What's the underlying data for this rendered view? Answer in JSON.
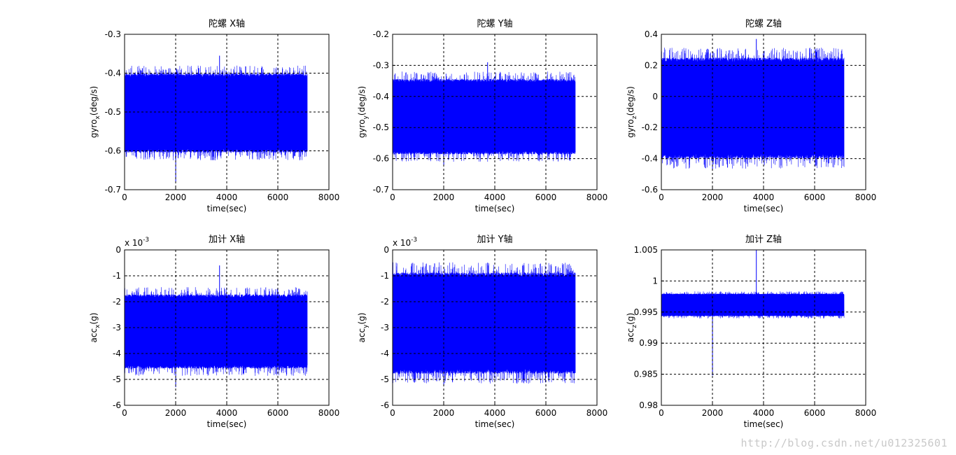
{
  "colors": {
    "series": "#0000ff",
    "axes": "#000000",
    "grid": "#000000",
    "background": "#ffffff"
  },
  "watermark": "http://blog.csdn.net/u012325601",
  "chart_data": [
    {
      "type": "line",
      "title": "陀螺 X轴",
      "xlabel": "time(sec)",
      "ylabel_main": "gyro",
      "ylabel_sub": "x",
      "ylabel_tail": "(deg/s)",
      "exponent": "",
      "xlim": [
        0,
        8000
      ],
      "ylim": [
        -0.7,
        -0.3
      ],
      "xticks": [
        "0",
        "2000",
        "4000",
        "6000",
        "8000"
      ],
      "yticks": [
        "-0.3",
        "-0.4",
        "-0.5",
        "-0.6",
        "-0.7"
      ],
      "grid": true,
      "series": [
        {
          "x_range": [
            0,
            7150
          ],
          "center": -0.505,
          "band_low": -0.595,
          "band_high": -0.41,
          "min": -0.68,
          "max": -0.355
        }
      ]
    },
    {
      "type": "line",
      "title": "陀螺 Y轴",
      "xlabel": "time(sec)",
      "ylabel_main": "gyro",
      "ylabel_sub": "y",
      "ylabel_tail": "(deg/s)",
      "exponent": "",
      "xlim": [
        0,
        8000
      ],
      "ylim": [
        -0.7,
        -0.2
      ],
      "xticks": [
        "0",
        "2000",
        "4000",
        "6000",
        "8000"
      ],
      "yticks": [
        "-0.2",
        "-0.3",
        "-0.4",
        "-0.5",
        "-0.6",
        "-0.7"
      ],
      "grid": true,
      "series": [
        {
          "x_range": [
            0,
            7150
          ],
          "center": -0.465,
          "band_low": -0.575,
          "band_high": -0.355,
          "min": -0.62,
          "max": -0.29
        }
      ]
    },
    {
      "type": "line",
      "title": "陀螺 Z轴",
      "xlabel": "time(sec)",
      "ylabel_main": "gyro",
      "ylabel_sub": "z",
      "ylabel_tail": "(deg/s)",
      "exponent": "",
      "xlim": [
        0,
        8000
      ],
      "ylim": [
        -0.6,
        0.4
      ],
      "xticks": [
        "0",
        "2000",
        "4000",
        "6000",
        "8000"
      ],
      "yticks": [
        "0.4",
        "0.2",
        "0",
        "-0.2",
        "-0.4",
        "-0.6"
      ],
      "grid": true,
      "series": [
        {
          "x_range": [
            0,
            7150
          ],
          "center": -0.08,
          "band_low": -0.37,
          "band_high": 0.22,
          "min": -0.47,
          "max": 0.37
        }
      ]
    },
    {
      "type": "line",
      "title": "加计 X轴",
      "xlabel": "time(sec)",
      "ylabel_main": "acc",
      "ylabel_sub": "x",
      "ylabel_tail": "(g)",
      "exponent": "x 10",
      "exponent_power": "-3",
      "xlim": [
        0,
        8000
      ],
      "ylim": [
        -6,
        0
      ],
      "xticks": [
        "0",
        "2000",
        "4000",
        "6000",
        "8000"
      ],
      "yticks": [
        "0",
        "-1",
        "-2",
        "-3",
        "-4",
        "-5",
        "-6"
      ],
      "grid": true,
      "series": [
        {
          "x_range": [
            0,
            7150
          ],
          "center": -3.15,
          "band_low": -4.45,
          "band_high": -1.85,
          "min": -5.3,
          "max": -0.6
        }
      ]
    },
    {
      "type": "line",
      "title": "加计 Y轴",
      "xlabel": "time(sec)",
      "ylabel_main": "acc",
      "ylabel_sub": "y",
      "ylabel_tail": "(g)",
      "exponent": "x 10",
      "exponent_power": "-3",
      "xlim": [
        0,
        8000
      ],
      "ylim": [
        -5,
        0
      ],
      "xticks": [
        "0",
        "2000",
        "4000",
        "6000",
        "8000"
      ],
      "yticks": [
        "0",
        "-1",
        "-2",
        "-3",
        "-4",
        "-5",
        "-6"
      ],
      "grid": true,
      "series": [
        {
          "x_range": [
            0,
            7150
          ],
          "center": -2.9,
          "band_low": -4.6,
          "band_high": -1.05,
          "min": -5.25,
          "max": -0.5
        }
      ]
    },
    {
      "type": "line",
      "title": "加计 Z轴",
      "xlabel": "time(sec)",
      "ylabel_main": "acc",
      "ylabel_sub": "z",
      "ylabel_tail": "(g)",
      "exponent": "",
      "xlim": [
        0,
        8000
      ],
      "ylim": [
        0.98,
        1.005
      ],
      "xticks": [
        "0",
        "2000",
        "4000",
        "6000",
        "8000"
      ],
      "yticks": [
        "1.005",
        "1",
        "0.995",
        "0.99",
        "0.985",
        "0.98"
      ],
      "grid": true,
      "series": [
        {
          "x_range": [
            0,
            7150
          ],
          "center": 0.9961,
          "band_low": 0.9945,
          "band_high": 0.9978,
          "min": 0.9848,
          "max": 1.005
        }
      ]
    }
  ]
}
